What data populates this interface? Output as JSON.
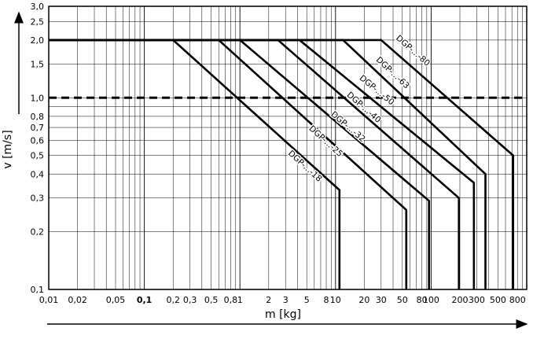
{
  "chart_data": {
    "type": "line",
    "xlabel": "m [kg]",
    "ylabel": "v [m/s]",
    "x_scale": "log",
    "y_scale": "log",
    "xlim": [
      0.01,
      1000
    ],
    "ylim": [
      0.1,
      3.0
    ],
    "grid": true,
    "x_tick_labels": [
      {
        "v": 0.01,
        "t": "0,01"
      },
      {
        "v": 0.02,
        "t": "0,02"
      },
      {
        "v": 0.05,
        "t": "0,05"
      },
      {
        "v": 0.1,
        "t": "0,1"
      },
      {
        "v": 0.2,
        "t": "0,2"
      },
      {
        "v": 0.3,
        "t": "0,3"
      },
      {
        "v": 0.5,
        "t": "0,5"
      },
      {
        "v": 0.8,
        "t": "0,8"
      },
      {
        "v": 1,
        "t": "1"
      },
      {
        "v": 2,
        "t": "2"
      },
      {
        "v": 3,
        "t": "3"
      },
      {
        "v": 5,
        "t": "5"
      },
      {
        "v": 8,
        "t": "8"
      },
      {
        "v": 10,
        "t": "10"
      },
      {
        "v": 20,
        "t": "20"
      },
      {
        "v": 30,
        "t": "30"
      },
      {
        "v": 50,
        "t": "50"
      },
      {
        "v": 80,
        "t": "80"
      },
      {
        "v": 100,
        "t": "100"
      },
      {
        "v": 200,
        "t": "200"
      },
      {
        "v": 300,
        "t": "300"
      },
      {
        "v": 500,
        "t": "500"
      },
      {
        "v": 800,
        "t": "800"
      }
    ],
    "y_tick_labels": [
      {
        "v": 0.1,
        "t": "0,1"
      },
      {
        "v": 0.2,
        "t": "0,2"
      },
      {
        "v": 0.3,
        "t": "0,3"
      },
      {
        "v": 0.4,
        "t": "0,4"
      },
      {
        "v": 0.5,
        "t": "0,5"
      },
      {
        "v": 0.6,
        "t": "0,6"
      },
      {
        "v": 0.7,
        "t": "0,7"
      },
      {
        "v": 0.8,
        "t": "0,8"
      },
      {
        "v": 1.0,
        "t": "1,0"
      },
      {
        "v": 1.5,
        "t": "1,5"
      },
      {
        "v": 2.0,
        "t": "2,0"
      },
      {
        "v": 2.5,
        "t": "2,5"
      },
      {
        "v": 3.0,
        "t": "3,0"
      }
    ],
    "reference_line": {
      "y": 1.0,
      "style": "dashed"
    },
    "series": [
      {
        "name": "DGP-...-18",
        "points": [
          [
            0.01,
            2.0
          ],
          [
            0.2,
            2.0
          ],
          [
            11,
            0.33
          ],
          [
            11,
            0.1
          ]
        ],
        "label_pos": [
          4.6,
          0.43
        ]
      },
      {
        "name": "DGP-...-25",
        "points": [
          [
            0.01,
            2.0
          ],
          [
            0.6,
            2.0
          ],
          [
            55,
            0.26
          ],
          [
            55,
            0.1
          ]
        ],
        "label_pos": [
          7.6,
          0.58
        ]
      },
      {
        "name": "DGP-...-32",
        "points": [
          [
            0.01,
            2.0
          ],
          [
            1.0,
            2.0
          ],
          [
            95,
            0.29
          ],
          [
            95,
            0.1
          ]
        ],
        "label_pos": [
          13,
          0.69
        ]
      },
      {
        "name": "DGP-...-40",
        "points": [
          [
            0.01,
            2.0
          ],
          [
            2.5,
            2.0
          ],
          [
            195,
            0.3
          ],
          [
            195,
            0.1
          ]
        ],
        "label_pos": [
          19,
          0.87
        ]
      },
      {
        "name": "DGP-...-50",
        "points": [
          [
            0.01,
            2.0
          ],
          [
            4.2,
            2.0
          ],
          [
            280,
            0.36
          ],
          [
            280,
            0.1
          ]
        ],
        "label_pos": [
          26,
          1.07
        ]
      },
      {
        "name": "DGP-...-63",
        "points": [
          [
            0.01,
            2.0
          ],
          [
            12,
            2.0
          ],
          [
            370,
            0.4
          ],
          [
            370,
            0.1
          ]
        ],
        "label_pos": [
          38,
          1.32
        ]
      },
      {
        "name": "DGP-...-80",
        "points": [
          [
            0.01,
            2.0
          ],
          [
            30,
            2.0
          ],
          [
            720,
            0.5
          ],
          [
            720,
            0.1
          ]
        ],
        "label_pos": [
          62,
          1.72
        ]
      }
    ]
  }
}
